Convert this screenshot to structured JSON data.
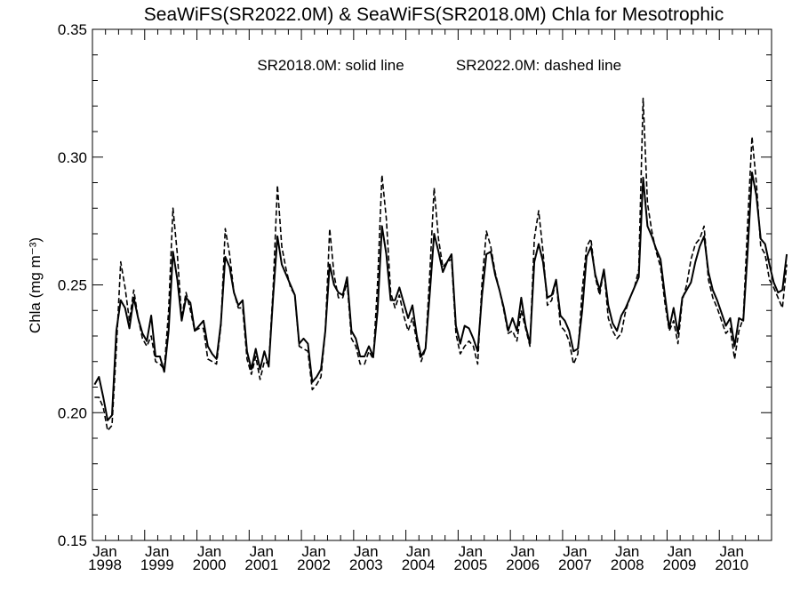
{
  "chart_data": {
    "type": "line",
    "title": "SeaWiFS(SR2022.0M) & SeaWiFS(SR2018.0M)  Chla for Mesotrophic",
    "legend_note": {
      "solid": "SR2018.0M: solid line",
      "dashed": "SR2022.0M: dashed line"
    },
    "ylabel": "Chla (mg m⁻³)",
    "xlabel": "",
    "ylim": [
      0.15,
      0.35
    ],
    "xlim": [
      "1998-01",
      "2010-12"
    ],
    "y_ticks": [
      "0.15",
      "0.20",
      "0.25",
      "0.30",
      "0.35"
    ],
    "x_ticks": [
      {
        "month": "Jan",
        "year": "1998"
      },
      {
        "month": "Jan",
        "year": "1999"
      },
      {
        "month": "Jan",
        "year": "2000"
      },
      {
        "month": "Jan",
        "year": "2001"
      },
      {
        "month": "Jan",
        "year": "2002"
      },
      {
        "month": "Jan",
        "year": "2003"
      },
      {
        "month": "Jan",
        "year": "2004"
      },
      {
        "month": "Jan",
        "year": "2005"
      },
      {
        "month": "Jan",
        "year": "2006"
      },
      {
        "month": "Jan",
        "year": "2007"
      },
      {
        "month": "Jan",
        "year": "2008"
      },
      {
        "month": "Jan",
        "year": "2009"
      },
      {
        "month": "Jan",
        "year": "2010"
      }
    ],
    "grid": false,
    "x_start": "1998-01",
    "series": [
      {
        "name": "SR2018.0M",
        "style": "solid",
        "values": [
          0.211,
          0.214,
          0.206,
          0.197,
          0.199,
          0.232,
          0.244,
          0.241,
          0.233,
          0.245,
          0.237,
          0.231,
          0.228,
          0.238,
          0.222,
          0.222,
          0.216,
          0.232,
          0.263,
          0.252,
          0.236,
          0.245,
          0.243,
          0.232,
          0.234,
          0.236,
          0.226,
          0.223,
          0.221,
          0.235,
          0.261,
          0.257,
          0.247,
          0.242,
          0.244,
          0.224,
          0.217,
          0.225,
          0.217,
          0.224,
          0.218,
          0.245,
          0.269,
          0.258,
          0.254,
          0.25,
          0.246,
          0.227,
          0.229,
          0.227,
          0.212,
          0.214,
          0.217,
          0.232,
          0.258,
          0.25,
          0.247,
          0.246,
          0.253,
          0.232,
          0.229,
          0.222,
          0.222,
          0.226,
          0.222,
          0.24,
          0.273,
          0.262,
          0.244,
          0.244,
          0.249,
          0.243,
          0.237,
          0.242,
          0.23,
          0.222,
          0.225,
          0.247,
          0.27,
          0.263,
          0.255,
          0.259,
          0.262,
          0.234,
          0.227,
          0.234,
          0.233,
          0.229,
          0.224,
          0.246,
          0.262,
          0.263,
          0.254,
          0.248,
          0.241,
          0.232,
          0.237,
          0.232,
          0.245,
          0.234,
          0.227,
          0.259,
          0.266,
          0.259,
          0.245,
          0.246,
          0.252,
          0.238,
          0.236,
          0.232,
          0.224,
          0.225,
          0.24,
          0.261,
          0.265,
          0.254,
          0.248,
          0.256,
          0.242,
          0.235,
          0.232,
          0.238,
          0.241,
          0.245,
          0.249,
          0.253,
          0.292,
          0.273,
          0.269,
          0.264,
          0.26,
          0.246,
          0.233,
          0.241,
          0.231,
          0.245,
          0.248,
          0.251,
          0.259,
          0.265,
          0.269,
          0.255,
          0.248,
          0.244,
          0.239,
          0.234,
          0.237,
          0.226,
          0.237,
          0.236,
          0.263,
          0.294,
          0.285,
          0.268,
          0.266,
          0.258,
          0.251,
          0.247,
          0.248,
          0.262
        ]
      },
      {
        "name": "SR2022.0M",
        "style": "dashed",
        "values": [
          0.206,
          0.206,
          0.202,
          0.193,
          0.195,
          0.225,
          0.259,
          0.249,
          0.236,
          0.248,
          0.237,
          0.229,
          0.226,
          0.23,
          0.22,
          0.219,
          0.217,
          0.24,
          0.28,
          0.262,
          0.237,
          0.247,
          0.24,
          0.232,
          0.233,
          0.233,
          0.221,
          0.22,
          0.219,
          0.234,
          0.272,
          0.262,
          0.247,
          0.241,
          0.241,
          0.221,
          0.215,
          0.222,
          0.213,
          0.22,
          0.219,
          0.248,
          0.289,
          0.265,
          0.256,
          0.249,
          0.246,
          0.226,
          0.225,
          0.224,
          0.209,
          0.211,
          0.214,
          0.232,
          0.272,
          0.254,
          0.245,
          0.245,
          0.251,
          0.229,
          0.226,
          0.219,
          0.219,
          0.224,
          0.221,
          0.251,
          0.293,
          0.276,
          0.247,
          0.241,
          0.246,
          0.238,
          0.232,
          0.237,
          0.228,
          0.22,
          0.225,
          0.255,
          0.288,
          0.268,
          0.257,
          0.259,
          0.26,
          0.231,
          0.223,
          0.226,
          0.228,
          0.226,
          0.219,
          0.251,
          0.271,
          0.265,
          0.255,
          0.248,
          0.24,
          0.231,
          0.232,
          0.228,
          0.24,
          0.233,
          0.226,
          0.268,
          0.279,
          0.263,
          0.242,
          0.244,
          0.252,
          0.234,
          0.232,
          0.228,
          0.219,
          0.223,
          0.248,
          0.265,
          0.268,
          0.253,
          0.246,
          0.256,
          0.237,
          0.232,
          0.229,
          0.231,
          0.24,
          0.245,
          0.249,
          0.256,
          0.323,
          0.282,
          0.271,
          0.263,
          0.257,
          0.243,
          0.232,
          0.236,
          0.227,
          0.244,
          0.25,
          0.26,
          0.266,
          0.268,
          0.273,
          0.252,
          0.245,
          0.241,
          0.236,
          0.231,
          0.233,
          0.221,
          0.232,
          0.237,
          0.274,
          0.308,
          0.29,
          0.265,
          0.262,
          0.252,
          0.249,
          0.245,
          0.241,
          0.258
        ]
      }
    ]
  }
}
